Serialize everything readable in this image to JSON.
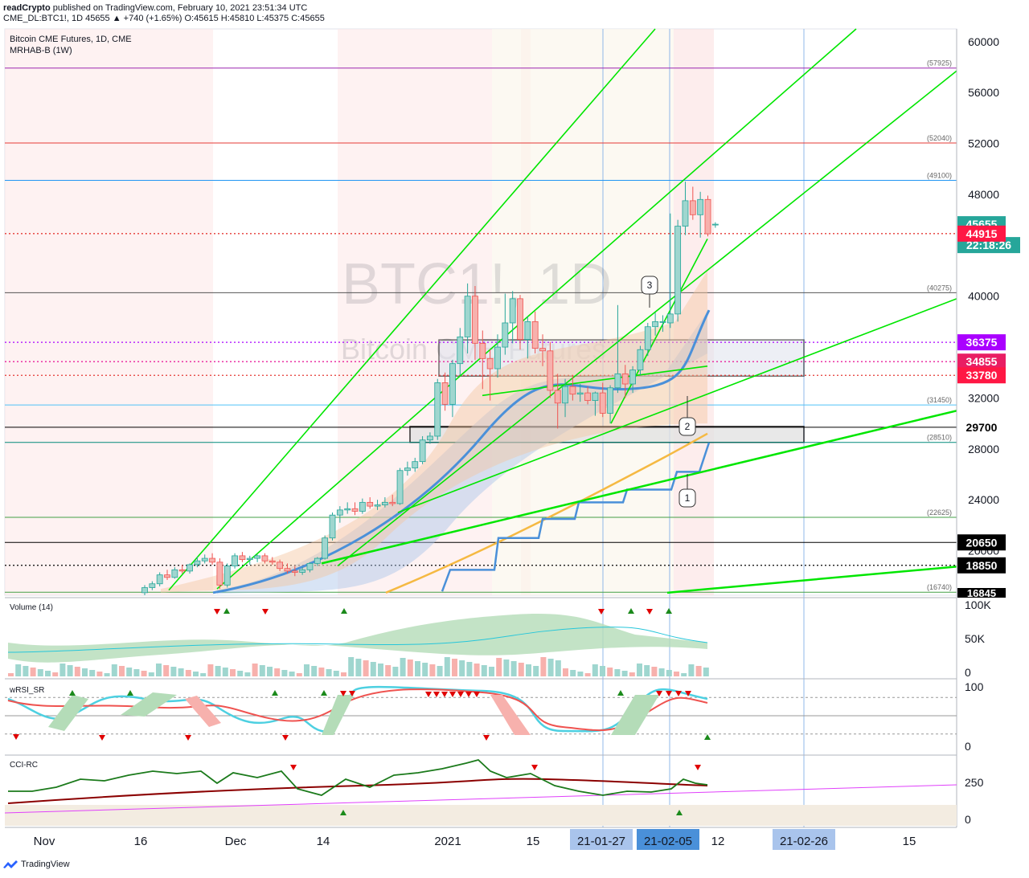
{
  "header": {
    "publisher": "readCrypto",
    "published_text": "published on TradingView.com, February 10, 2021 23:51:34 UTC",
    "symbol_line": "CME_DL:BTC1!, 1D 45655 ▲ +740 (+1.65%) O:45615 H:45810 L:45375 C:45655"
  },
  "legend": {
    "title": "Bitcoin CME Futures, 1D, CME",
    "indicator": "MRHAB-B (1W)"
  },
  "watermark": {
    "ticker": "BTC1!, 1D",
    "name": "Bitcoin CME Futures"
  },
  "colors": {
    "up": "#26a69a",
    "down": "#ef5350",
    "green_line": "#00e600",
    "blue_ma": "#4a90d9",
    "orange_ma": "#f5b942",
    "purple": "#9c27b0",
    "price_badge": "#26a69a",
    "countdown": "#26a69a"
  },
  "chart_data": {
    "type": "candlestick",
    "title": "Bitcoin CME Futures, 1D, CME",
    "ylim": [
      16500,
      61000
    ],
    "y_ticks": [
      60000,
      56000,
      52000,
      48000,
      44000,
      40000,
      36000,
      32000,
      28000,
      24000,
      20000
    ],
    "y_tick_labels": [
      "60000",
      "56000",
      "52000",
      "48000",
      "",
      "40000",
      "",
      "32000",
      "28000",
      "24000",
      "20000"
    ],
    "x_tick_labels": [
      "Nov",
      "16",
      "Dec",
      "14",
      "2021",
      "15",
      "21-01-27",
      "21-02-05",
      "12",
      "21-02-26",
      "15"
    ],
    "highlighted_dates": [
      "21-01-27",
      "21-02-05",
      "21-02-26"
    ],
    "last_price": 45655,
    "countdown": "22:18:26",
    "horizontal_levels": [
      {
        "value": 57925,
        "label": "(57925)",
        "color": "#9c27b0",
        "style": "solid"
      },
      {
        "value": 52040,
        "label": "(52040)",
        "color": "#e53935",
        "style": "solid"
      },
      {
        "value": 49100,
        "label": "(49100)",
        "color": "#2196f3",
        "style": "solid"
      },
      {
        "value": 44915,
        "label": "44915",
        "color": "#e53935",
        "style": "dotted",
        "badge": true
      },
      {
        "value": 40275,
        "label": "(40275)",
        "color": "#555555",
        "style": "solid"
      },
      {
        "value": 36375,
        "label": "36375",
        "color": "#aa00ff",
        "style": "dotted",
        "badge": true
      },
      {
        "value": 34855,
        "label": "34855",
        "color": "#e91e9c",
        "style": "dotted",
        "badge": true
      },
      {
        "value": 33780,
        "label": "33780",
        "color": "#e53935",
        "style": "dotted",
        "badge": true
      },
      {
        "value": 31450,
        "label": "(31450)",
        "color": "#4fc3f7",
        "style": "solid"
      },
      {
        "value": 29700,
        "label": "29700",
        "color": "#000000",
        "style": "solid",
        "badge": true
      },
      {
        "value": 28510,
        "label": "(28510)",
        "color": "#00897b",
        "style": "solid"
      },
      {
        "value": 22625,
        "label": "(22625)",
        "color": "#43a047",
        "style": "solid"
      },
      {
        "value": 20650,
        "label": "20650",
        "color": "#000000",
        "style": "solid",
        "badge": true
      },
      {
        "value": 18850,
        "label": "18850",
        "color": "#000000",
        "style": "dotted",
        "badge": true
      },
      {
        "value": 16740,
        "label": "(16740)",
        "color": "#43a047",
        "style": "solid"
      }
    ],
    "bottom_badge": "16845",
    "callouts": [
      "1",
      "2",
      "3"
    ],
    "candles": [
      {
        "o": 16700,
        "h": 17300,
        "l": 16500,
        "c": 17100
      },
      {
        "o": 17100,
        "h": 17600,
        "l": 16900,
        "c": 17400
      },
      {
        "o": 17400,
        "h": 18300,
        "l": 17200,
        "c": 18100
      },
      {
        "o": 18100,
        "h": 18500,
        "l": 17700,
        "c": 17900
      },
      {
        "o": 17900,
        "h": 18700,
        "l": 17800,
        "c": 18500
      },
      {
        "o": 18500,
        "h": 18900,
        "l": 18200,
        "c": 18400
      },
      {
        "o": 18400,
        "h": 19000,
        "l": 18200,
        "c": 18900
      },
      {
        "o": 18900,
        "h": 19500,
        "l": 18700,
        "c": 19200
      },
      {
        "o": 19200,
        "h": 19700,
        "l": 19000,
        "c": 19400
      },
      {
        "o": 19400,
        "h": 19800,
        "l": 18900,
        "c": 19100
      },
      {
        "o": 19100,
        "h": 19400,
        "l": 17000,
        "c": 17300
      },
      {
        "o": 17300,
        "h": 19000,
        "l": 17100,
        "c": 18800
      },
      {
        "o": 18800,
        "h": 19800,
        "l": 18600,
        "c": 19600
      },
      {
        "o": 19600,
        "h": 19900,
        "l": 19100,
        "c": 19300
      },
      {
        "o": 19300,
        "h": 19600,
        "l": 18900,
        "c": 19400
      },
      {
        "o": 19400,
        "h": 19700,
        "l": 19100,
        "c": 19600
      },
      {
        "o": 19600,
        "h": 19800,
        "l": 19000,
        "c": 19200
      },
      {
        "o": 19200,
        "h": 19500,
        "l": 18900,
        "c": 19100
      },
      {
        "o": 19100,
        "h": 19300,
        "l": 18400,
        "c": 18600
      },
      {
        "o": 18600,
        "h": 19000,
        "l": 18200,
        "c": 18400
      },
      {
        "o": 18400,
        "h": 18800,
        "l": 18000,
        "c": 18300
      },
      {
        "o": 18300,
        "h": 18700,
        "l": 18100,
        "c": 18500
      },
      {
        "o": 18500,
        "h": 19100,
        "l": 18300,
        "c": 19000
      },
      {
        "o": 19000,
        "h": 19500,
        "l": 18800,
        "c": 19400
      },
      {
        "o": 19400,
        "h": 21200,
        "l": 19300,
        "c": 21000
      },
      {
        "o": 21000,
        "h": 23000,
        "l": 20800,
        "c": 22800
      },
      {
        "o": 22800,
        "h": 23500,
        "l": 22200,
        "c": 23200
      },
      {
        "o": 23200,
        "h": 23800,
        "l": 22900,
        "c": 23300
      },
      {
        "o": 23300,
        "h": 23800,
        "l": 22800,
        "c": 23100
      },
      {
        "o": 23100,
        "h": 24100,
        "l": 22900,
        "c": 23800
      },
      {
        "o": 23800,
        "h": 24200,
        "l": 23300,
        "c": 23500
      },
      {
        "o": 23500,
        "h": 24000,
        "l": 23200,
        "c": 23600
      },
      {
        "o": 23600,
        "h": 24200,
        "l": 23400,
        "c": 23800
      },
      {
        "o": 23800,
        "h": 24400,
        "l": 23500,
        "c": 23700
      },
      {
        "o": 23700,
        "h": 26500,
        "l": 23600,
        "c": 26300
      },
      {
        "o": 26300,
        "h": 27000,
        "l": 25900,
        "c": 26500
      },
      {
        "o": 26500,
        "h": 27300,
        "l": 26200,
        "c": 27000
      },
      {
        "o": 27000,
        "h": 29000,
        "l": 26800,
        "c": 28700
      },
      {
        "o": 28700,
        "h": 29300,
        "l": 28400,
        "c": 29000
      },
      {
        "o": 29000,
        "h": 33500,
        "l": 28700,
        "c": 33200
      },
      {
        "o": 33200,
        "h": 34000,
        "l": 31000,
        "c": 31500
      },
      {
        "o": 31500,
        "h": 35000,
        "l": 30500,
        "c": 34700
      },
      {
        "o": 34700,
        "h": 37500,
        "l": 33800,
        "c": 36800
      },
      {
        "o": 36800,
        "h": 41000,
        "l": 35500,
        "c": 40000
      },
      {
        "o": 40000,
        "h": 40800,
        "l": 35000,
        "c": 36300
      },
      {
        "o": 36300,
        "h": 37300,
        "l": 32700,
        "c": 35100
      },
      {
        "o": 35100,
        "h": 35800,
        "l": 31800,
        "c": 34300
      },
      {
        "o": 34300,
        "h": 37000,
        "l": 33600,
        "c": 36000
      },
      {
        "o": 36000,
        "h": 40200,
        "l": 35400,
        "c": 37900
      },
      {
        "o": 37900,
        "h": 40400,
        "l": 36300,
        "c": 39800
      },
      {
        "o": 39800,
        "h": 40100,
        "l": 35800,
        "c": 36600
      },
      {
        "o": 36600,
        "h": 38400,
        "l": 35100,
        "c": 38000
      },
      {
        "o": 38000,
        "h": 38800,
        "l": 35500,
        "c": 35900
      },
      {
        "o": 35900,
        "h": 37000,
        "l": 34500,
        "c": 35700
      },
      {
        "o": 35700,
        "h": 36400,
        "l": 32000,
        "c": 32600
      },
      {
        "o": 32600,
        "h": 33900,
        "l": 29600,
        "c": 31600
      },
      {
        "o": 31600,
        "h": 33500,
        "l": 30500,
        "c": 32900
      },
      {
        "o": 32900,
        "h": 33800,
        "l": 31800,
        "c": 32300
      },
      {
        "o": 32300,
        "h": 33100,
        "l": 31700,
        "c": 32400
      },
      {
        "o": 32400,
        "h": 32900,
        "l": 31500,
        "c": 31800
      },
      {
        "o": 31800,
        "h": 32500,
        "l": 30600,
        "c": 32400
      },
      {
        "o": 32400,
        "h": 33200,
        "l": 30500,
        "c": 30800
      },
      {
        "o": 30800,
        "h": 33000,
        "l": 30000,
        "c": 32800
      },
      {
        "o": 32800,
        "h": 39300,
        "l": 32400,
        "c": 33900
      },
      {
        "o": 33900,
        "h": 34600,
        "l": 32000,
        "c": 33100
      },
      {
        "o": 33100,
        "h": 34500,
        "l": 32400,
        "c": 34200
      },
      {
        "o": 34200,
        "h": 36100,
        "l": 33800,
        "c": 35800
      },
      {
        "o": 35800,
        "h": 37900,
        "l": 35300,
        "c": 37600
      },
      {
        "o": 37600,
        "h": 38700,
        "l": 36900,
        "c": 38000
      },
      {
        "o": 38000,
        "h": 38500,
        "l": 37200,
        "c": 38000
      },
      {
        "o": 37900,
        "h": 46500,
        "l": 37500,
        "c": 38600
      },
      {
        "o": 38600,
        "h": 46000,
        "l": 38000,
        "c": 45500
      },
      {
        "o": 45500,
        "h": 49000,
        "l": 44800,
        "c": 47500
      },
      {
        "o": 47500,
        "h": 48600,
        "l": 46000,
        "c": 46400
      },
      {
        "o": 46400,
        "h": 48200,
        "l": 44600,
        "c": 47600
      },
      {
        "o": 47600,
        "h": 47900,
        "l": 44700,
        "c": 44900
      },
      {
        "o": 45615,
        "h": 45810,
        "l": 45375,
        "c": 45655
      }
    ],
    "volume_panel": {
      "title": "Volume (14)",
      "ticks": [
        "100K",
        "50K",
        "0"
      ]
    },
    "rsi_panel": {
      "title": "wRSI_SR",
      "ticks": [
        "100",
        "0"
      ],
      "levels": [
        80,
        50,
        20
      ]
    },
    "cci_panel": {
      "title": "CCI-RC",
      "ticks": [
        "250",
        "0"
      ]
    }
  },
  "footer": {
    "brand": "TradingView"
  }
}
